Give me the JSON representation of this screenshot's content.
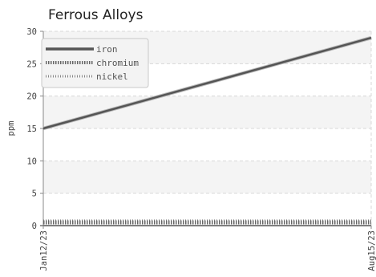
{
  "chart_data": {
    "type": "line",
    "title": "Ferrous Alloys",
    "xlabel": "",
    "ylabel": "ppm",
    "x_ticks": [
      "Jan12/23",
      "Aug15/23"
    ],
    "x_range": [
      "Jan12/23",
      "Aug15/23"
    ],
    "ylim": [
      0,
      30
    ],
    "y_ticks": [
      0,
      5,
      10,
      15,
      20,
      25,
      30
    ],
    "grid": true,
    "legend_position": "top-left",
    "series": [
      {
        "name": "iron",
        "color": "#555555",
        "style": "solid",
        "start": 15,
        "end": 29
      },
      {
        "name": "chromium",
        "color": "#666666",
        "style": "dense-dotted",
        "start": 0.5,
        "end": 0.5
      },
      {
        "name": "nickel",
        "color": "#888888",
        "style": "dotted",
        "start": 0.7,
        "end": 0.7
      }
    ]
  }
}
